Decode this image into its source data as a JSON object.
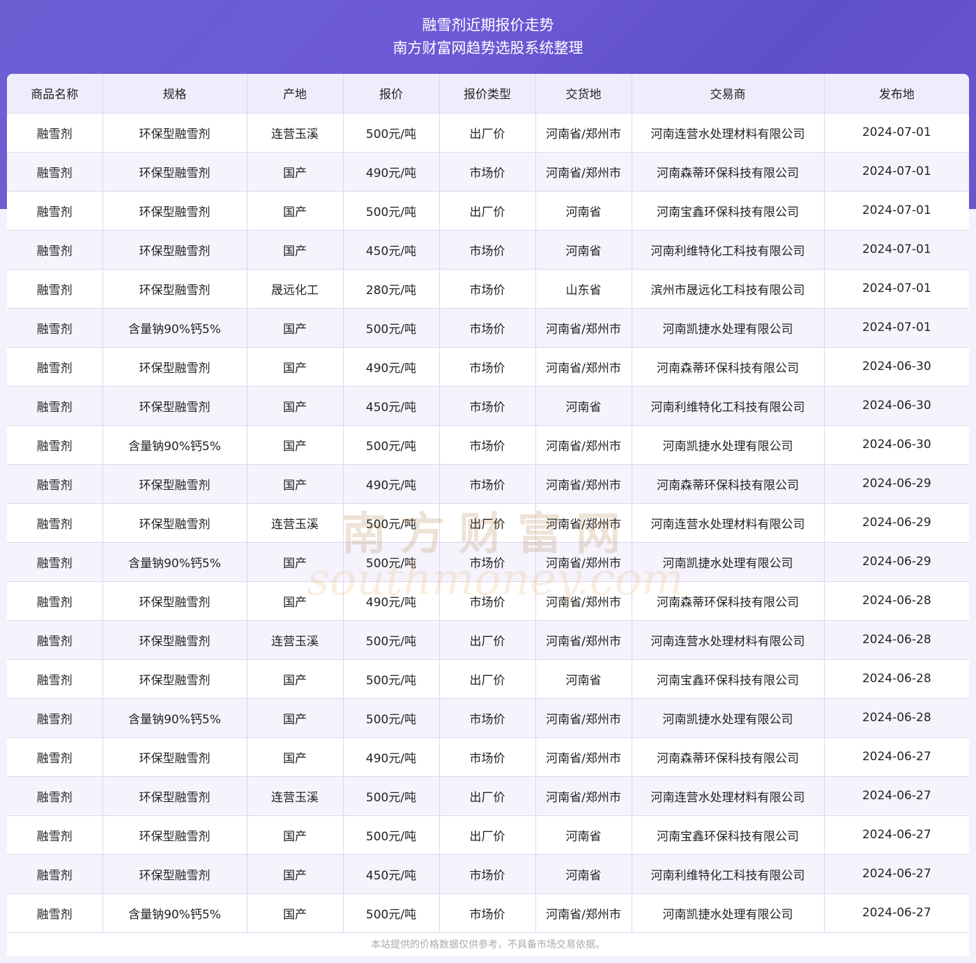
{
  "header": {
    "title": "融雪剂近期报价走势",
    "subtitle": "南方财富网趋势选股系统整理"
  },
  "table": {
    "columns": [
      "商品名称",
      "规格",
      "产地",
      "报价",
      "报价类型",
      "交货地",
      "交易商",
      "发布地"
    ],
    "rows": [
      [
        "融雪剂",
        "环保型融雪剂",
        "连营玉溪",
        "500元/吨",
        "出厂价",
        "河南省/郑州市",
        "河南连营水处理材料有限公司",
        "2024-07-01"
      ],
      [
        "融雪剂",
        "环保型融雪剂",
        "国产",
        "490元/吨",
        "市场价",
        "河南省/郑州市",
        "河南森蒂环保科技有限公司",
        "2024-07-01"
      ],
      [
        "融雪剂",
        "环保型融雪剂",
        "国产",
        "500元/吨",
        "出厂价",
        "河南省",
        "河南宝鑫环保科技有限公司",
        "2024-07-01"
      ],
      [
        "融雪剂",
        "环保型融雪剂",
        "国产",
        "450元/吨",
        "市场价",
        "河南省",
        "河南利维特化工科技有限公司",
        "2024-07-01"
      ],
      [
        "融雪剂",
        "环保型融雪剂",
        "晟远化工",
        "280元/吨",
        "市场价",
        "山东省",
        "滨州市晟远化工科技有限公司",
        "2024-07-01"
      ],
      [
        "融雪剂",
        "含量钠90%钙5%",
        "国产",
        "500元/吨",
        "市场价",
        "河南省/郑州市",
        "河南凯捷水处理有限公司",
        "2024-07-01"
      ],
      [
        "融雪剂",
        "环保型融雪剂",
        "国产",
        "490元/吨",
        "市场价",
        "河南省/郑州市",
        "河南森蒂环保科技有限公司",
        "2024-06-30"
      ],
      [
        "融雪剂",
        "环保型融雪剂",
        "国产",
        "450元/吨",
        "市场价",
        "河南省",
        "河南利维特化工科技有限公司",
        "2024-06-30"
      ],
      [
        "融雪剂",
        "含量钠90%钙5%",
        "国产",
        "500元/吨",
        "市场价",
        "河南省/郑州市",
        "河南凯捷水处理有限公司",
        "2024-06-30"
      ],
      [
        "融雪剂",
        "环保型融雪剂",
        "国产",
        "490元/吨",
        "市场价",
        "河南省/郑州市",
        "河南森蒂环保科技有限公司",
        "2024-06-29"
      ],
      [
        "融雪剂",
        "环保型融雪剂",
        "连营玉溪",
        "500元/吨",
        "出厂价",
        "河南省/郑州市",
        "河南连营水处理材料有限公司",
        "2024-06-29"
      ],
      [
        "融雪剂",
        "含量钠90%钙5%",
        "国产",
        "500元/吨",
        "市场价",
        "河南省/郑州市",
        "河南凯捷水处理有限公司",
        "2024-06-29"
      ],
      [
        "融雪剂",
        "环保型融雪剂",
        "国产",
        "490元/吨",
        "市场价",
        "河南省/郑州市",
        "河南森蒂环保科技有限公司",
        "2024-06-28"
      ],
      [
        "融雪剂",
        "环保型融雪剂",
        "连营玉溪",
        "500元/吨",
        "出厂价",
        "河南省/郑州市",
        "河南连营水处理材料有限公司",
        "2024-06-28"
      ],
      [
        "融雪剂",
        "环保型融雪剂",
        "国产",
        "500元/吨",
        "出厂价",
        "河南省",
        "河南宝鑫环保科技有限公司",
        "2024-06-28"
      ],
      [
        "融雪剂",
        "含量钠90%钙5%",
        "国产",
        "500元/吨",
        "市场价",
        "河南省/郑州市",
        "河南凯捷水处理有限公司",
        "2024-06-28"
      ],
      [
        "融雪剂",
        "环保型融雪剂",
        "国产",
        "490元/吨",
        "市场价",
        "河南省/郑州市",
        "河南森蒂环保科技有限公司",
        "2024-06-27"
      ],
      [
        "融雪剂",
        "环保型融雪剂",
        "连营玉溪",
        "500元/吨",
        "出厂价",
        "河南省/郑州市",
        "河南连营水处理材料有限公司",
        "2024-06-27"
      ],
      [
        "融雪剂",
        "环保型融雪剂",
        "国产",
        "500元/吨",
        "出厂价",
        "河南省",
        "河南宝鑫环保科技有限公司",
        "2024-06-27"
      ],
      [
        "融雪剂",
        "环保型融雪剂",
        "国产",
        "450元/吨",
        "市场价",
        "河南省",
        "河南利维特化工科技有限公司",
        "2024-06-27"
      ],
      [
        "融雪剂",
        "含量钠90%钙5%",
        "国产",
        "500元/吨",
        "市场价",
        "河南省/郑州市",
        "河南凯捷水处理有限公司",
        "2024-06-27"
      ]
    ]
  },
  "footer": {
    "disclaimer": "本站提供的价格数据仅供参考，不具备市场交易依据。"
  },
  "watermark": {
    "cn": "南方财富网",
    "en": "southmoney.com"
  }
}
